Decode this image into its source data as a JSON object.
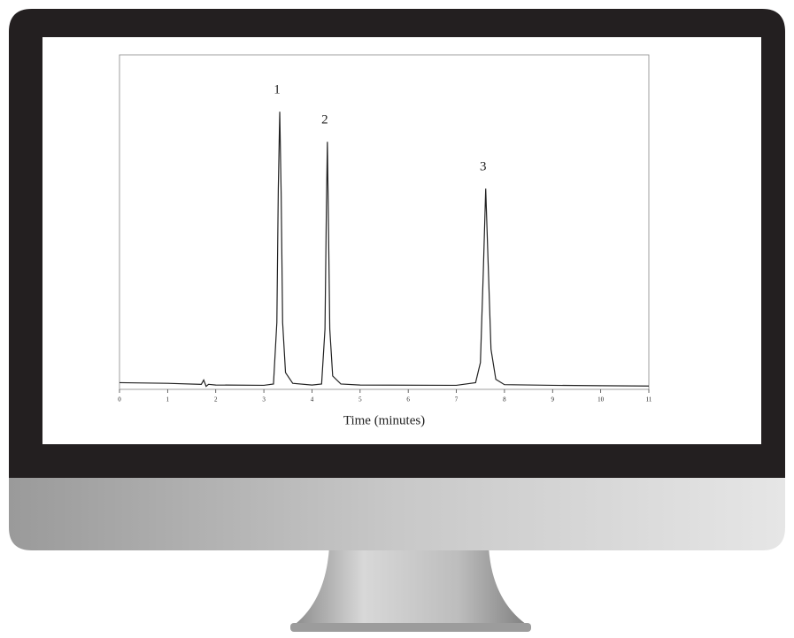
{
  "chart_data": {
    "type": "line",
    "xlabel": "Time (minutes)",
    "x": [
      0,
      1,
      1.7,
      1.75,
      1.8,
      1.85,
      2,
      3,
      3.2,
      3.27,
      3.3,
      3.33,
      3.36,
      3.39,
      3.45,
      3.6,
      4,
      4.2,
      4.27,
      4.3,
      4.32,
      4.34,
      4.37,
      4.43,
      4.6,
      5,
      7,
      7.4,
      7.5,
      7.56,
      7.61,
      7.66,
      7.72,
      7.82,
      8,
      9,
      10,
      11
    ],
    "values": [
      2,
      1.8,
      1.5,
      2.8,
      0.9,
      1.5,
      1.3,
      1.2,
      1.6,
      20,
      60,
      83,
      58,
      20,
      5,
      1.8,
      1.3,
      1.6,
      18,
      55,
      74,
      52,
      18,
      4,
      1.6,
      1.3,
      1.2,
      2,
      8,
      35,
      60,
      38,
      12,
      3,
      1.4,
      1.2,
      1.1,
      1
    ],
    "color": "#222222",
    "peak_labels": [
      "1",
      "2",
      "3"
    ],
    "xlim": [
      0,
      11
    ],
    "xticks": [
      0,
      1,
      2,
      3,
      4,
      5,
      6,
      7,
      8,
      9,
      10,
      11
    ],
    "ylim": [
      0,
      100
    ]
  }
}
